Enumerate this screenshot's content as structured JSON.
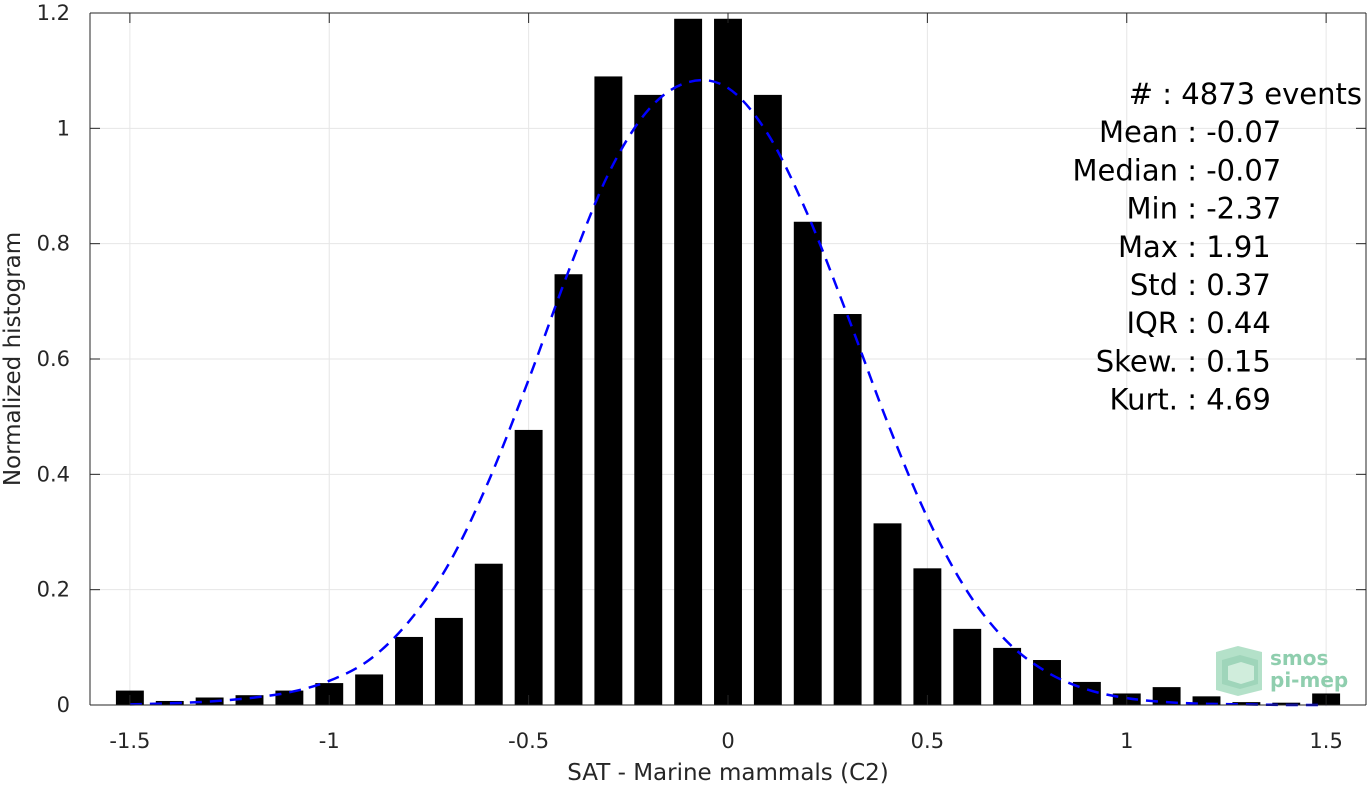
{
  "chart_data": {
    "type": "bar",
    "xlabel": "SAT - Marine mammals (C2)",
    "ylabel": "Normalized histogram",
    "xlim": [
      -1.6,
      1.6
    ],
    "ylim": [
      0,
      1.2
    ],
    "grid": true,
    "x": [
      -1.5,
      -1.4,
      -1.3,
      -1.2,
      -1.1,
      -1.0,
      -0.9,
      -0.8,
      -0.7,
      -0.6,
      -0.5,
      -0.4,
      -0.3,
      -0.2,
      -0.1,
      0.0,
      0.1,
      0.2,
      0.3,
      0.4,
      0.5,
      0.6,
      0.7,
      0.8,
      0.9,
      1.0,
      1.1,
      1.2,
      1.3,
      1.4,
      1.5
    ],
    "series": [
      {
        "type": "bar",
        "color": "#000000",
        "values": [
          0.025,
          0.007,
          0.013,
          0.017,
          0.025,
          0.038,
          0.053,
          0.118,
          0.151,
          0.245,
          0.477,
          0.747,
          1.09,
          1.058,
          1.19,
          1.19,
          1.058,
          0.838,
          0.678,
          0.315,
          0.237,
          0.132,
          0.099,
          0.078,
          0.04,
          0.02,
          0.031,
          0.015,
          0.005,
          0.004,
          0.02
        ]
      },
      {
        "type": "line",
        "style": "dashed",
        "color": "#0000ff",
        "values": [
          0.001,
          0.003,
          0.006,
          0.012,
          0.022,
          0.042,
          0.078,
          0.145,
          0.245,
          0.389,
          0.564,
          0.752,
          0.921,
          1.032,
          1.08,
          1.07,
          0.99,
          0.85,
          0.675,
          0.49,
          0.325,
          0.197,
          0.11,
          0.057,
          0.027,
          0.012,
          0.005,
          0.002,
          0.001,
          0.0,
          0.0
        ]
      }
    ],
    "xticks": [
      {
        "value": -1.5,
        "label": "-1.5"
      },
      {
        "value": -1.0,
        "label": "-1"
      },
      {
        "value": -0.5,
        "label": "-0.5"
      },
      {
        "value": 0.0,
        "label": "0"
      },
      {
        "value": 0.5,
        "label": "0.5"
      },
      {
        "value": 1.0,
        "label": "1"
      },
      {
        "value": 1.5,
        "label": "1.5"
      }
    ],
    "yticks": [
      {
        "value": 0,
        "label": "0"
      },
      {
        "value": 0.2,
        "label": "0.2"
      },
      {
        "value": 0.4,
        "label": "0.4"
      },
      {
        "value": 0.6,
        "label": "0.6"
      },
      {
        "value": 0.8,
        "label": "0.8"
      },
      {
        "value": 1.0,
        "label": "1"
      },
      {
        "value": 1.2,
        "label": "1.2"
      }
    ],
    "annotations": [
      "#  : 4873 events",
      "Mean : -0.07",
      "Median : -0.07",
      "Min : -2.37",
      "Max : 1.91",
      "Std : 0.37",
      "IQR : 0.44",
      "Skew. : 0.15",
      "Kurt. : 4.69"
    ]
  },
  "logo": {
    "line1": "smos",
    "line2": "pi-mep"
  }
}
